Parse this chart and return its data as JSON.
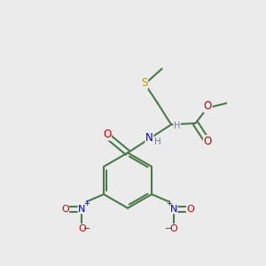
{
  "bg_color": "#ebebeb",
  "atom_colors": {
    "C": "#4a7a4a",
    "O": "#cc0000",
    "N": "#0000cc",
    "S": "#b8960c",
    "H": "#708090"
  },
  "bond_color": "#4a7a4a",
  "bond_width": 1.5,
  "figsize": [
    3.0,
    3.0
  ],
  "dpi": 100
}
